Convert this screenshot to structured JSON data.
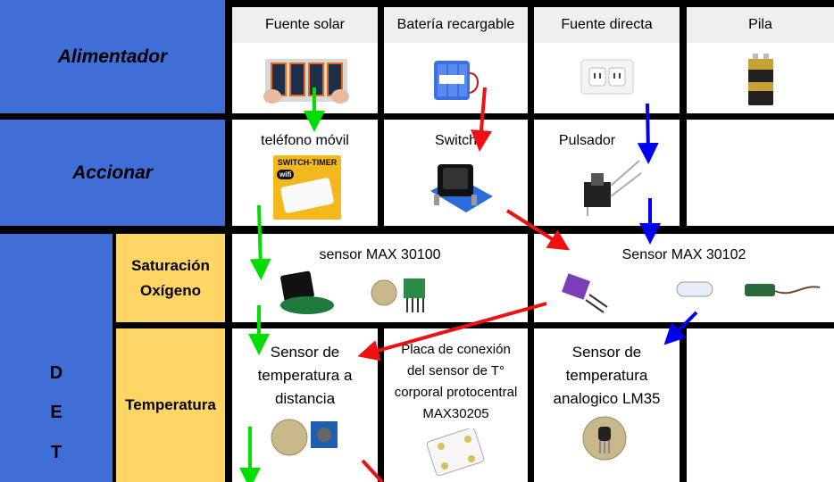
{
  "rows": {
    "alimentador": "Alimentador",
    "accionar": "Accionar",
    "det_letters": [
      "D",
      "E",
      "T"
    ],
    "saturacion": [
      "Saturación",
      "Oxígeno"
    ],
    "temperatura": "Temperatura"
  },
  "alimentador_options": [
    {
      "label": "Fuente solar",
      "icon": "solar-panel-icon"
    },
    {
      "label": "Batería recargable",
      "icon": "battery-pack-icon"
    },
    {
      "label": "Fuente directa",
      "icon": "wall-outlet-icon"
    },
    {
      "label": "Pila",
      "icon": "9v-battery-icon"
    }
  ],
  "accionar_options": [
    {
      "label": "teléfono móvil",
      "icon": "switch-timer-icon",
      "badge": "SWITCH-TIMER",
      "badge_sub": "wifi"
    },
    {
      "label": "Switch",
      "icon": "rocker-switch-icon"
    },
    {
      "label": "Pulsador",
      "icon": "push-button-icon"
    }
  ],
  "saturacion_options": [
    {
      "label": "sensor MAX 30100",
      "icon": "max30100-sensor-icon"
    },
    {
      "label": "Sensor MAX 30102",
      "icon": "max30102-sensor-icon"
    }
  ],
  "temperatura_options": [
    {
      "lines": [
        "Sensor de",
        "temperatura a",
        "distancia"
      ],
      "icon": "ir-temperature-sensor-icon"
    },
    {
      "lines": [
        "Placa de conexión",
        "del sensor de T°",
        "corporal protocentral",
        "MAX30205"
      ],
      "icon": "max30205-board-icon"
    },
    {
      "lines": [
        "Sensor de",
        "temperatura",
        "analogico LM35"
      ],
      "icon": "lm35-sensor-icon"
    }
  ],
  "colors": {
    "row_header": "#3f6fd6",
    "sub_header": "#ffd666",
    "green_arrow": "#00dd00",
    "red_arrow": "#ee1111",
    "blue_arrow": "#0000ee"
  }
}
